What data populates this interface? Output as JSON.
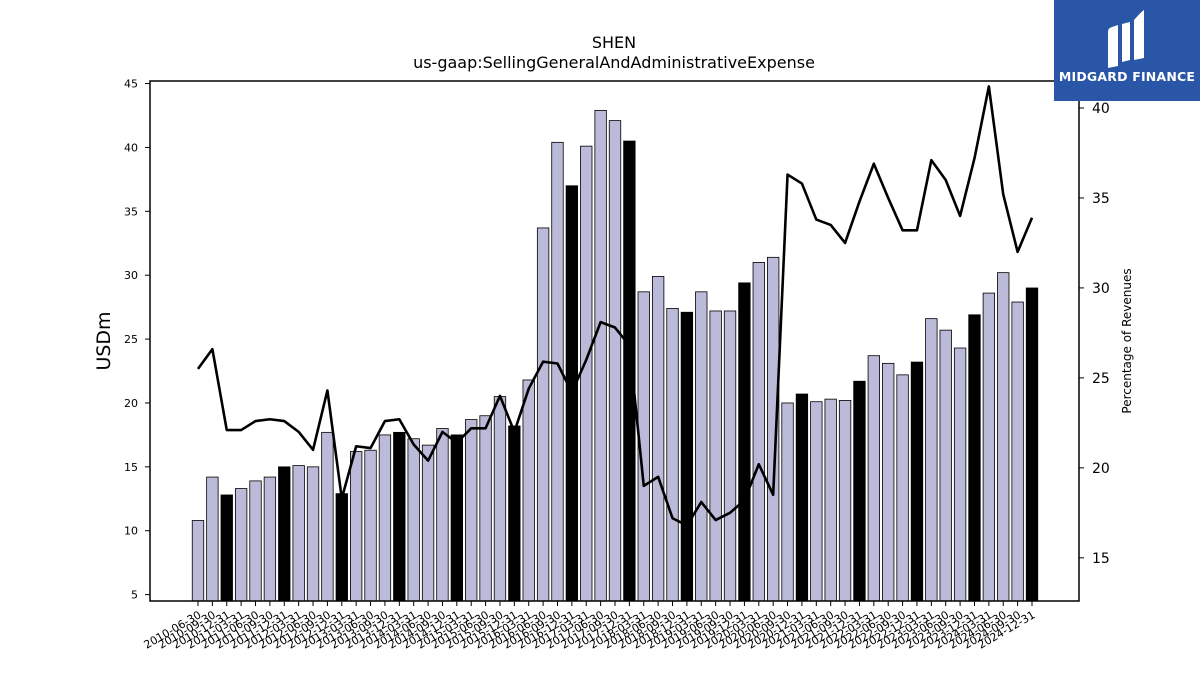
{
  "chart_data": {
    "type": "bar",
    "title": "SHEN",
    "subtitle": "us-gaap:SellingGeneralAndAdministrativeExpense",
    "ylabel": "USDm",
    "y2label": "Percentage of Revenues",
    "ylim": [
      4.5,
      45.2
    ],
    "y2lim": [
      12.6,
      41.5
    ],
    "yticks": [
      5,
      10,
      15,
      20,
      25,
      30,
      35,
      40,
      45
    ],
    "y2ticks": [
      15,
      20,
      25,
      30,
      35,
      40
    ],
    "categories": [
      "2010-06-30",
      "2010-09-30",
      "2010-12-31",
      "2011-03-31",
      "2011-06-30",
      "2011-09-30",
      "2011-12-31",
      "2012-03-31",
      "2012-06-30",
      "2012-09-30",
      "2012-12-31",
      "2013-03-31",
      "2013-06-30",
      "2013-09-30",
      "2013-12-31",
      "2014-03-31",
      "2014-06-30",
      "2014-09-30",
      "2014-12-31",
      "2015-03-31",
      "2015-06-30",
      "2015-09-30",
      "2015-12-31",
      "2016-03-31",
      "2016-06-30",
      "2016-09-30",
      "2016-12-31",
      "2017-03-31",
      "2017-06-30",
      "2017-09-30",
      "2017-12-31",
      "2018-03-31",
      "2018-06-30",
      "2018-09-30",
      "2018-12-31",
      "2019-03-31",
      "2019-06-30",
      "2019-09-30",
      "2019-12-31",
      "2020-03-31",
      "2020-06-30",
      "2020-09-30",
      "2020-12-31",
      "2021-03-31",
      "2021-06-30",
      "2021-09-30",
      "2021-12-31",
      "2022-03-31",
      "2022-06-30",
      "2022-09-30",
      "2022-12-31",
      "2023-03-31",
      "2023-06-30",
      "2023-09-30",
      "2023-12-31",
      "2024-03-31",
      "2024-06-30",
      "2024-09-30",
      "2024-12-31"
    ],
    "series": [
      {
        "values": [
          10.8,
          14.2,
          12.8,
          13.3,
          13.9,
          14.2,
          15.0,
          15.1,
          15.0,
          17.7,
          12.9,
          16.2,
          16.3,
          17.5,
          17.7,
          17.2,
          16.7,
          18.0,
          17.5,
          18.7,
          19.0,
          20.5,
          18.2,
          21.8,
          33.7,
          40.4,
          37.0,
          40.1,
          42.9,
          42.1,
          40.5,
          28.7,
          29.9,
          27.4,
          27.1,
          28.7,
          27.2,
          27.2,
          29.4,
          31.0,
          31.4,
          20.0,
          20.7,
          20.1,
          20.3,
          20.2,
          21.7,
          23.7,
          23.1,
          22.2,
          23.2,
          26.6,
          25.7,
          24.3,
          26.9,
          28.6,
          30.2,
          27.9,
          29.0
        ],
        "annual": [
          false,
          false,
          true,
          false,
          false,
          false,
          true,
          false,
          false,
          false,
          true,
          false,
          false,
          false,
          true,
          false,
          false,
          false,
          true,
          false,
          false,
          false,
          true,
          false,
          false,
          false,
          true,
          false,
          false,
          false,
          true,
          false,
          false,
          false,
          true,
          false,
          false,
          false,
          true,
          false,
          false,
          false,
          true,
          false,
          false,
          false,
          true,
          false,
          false,
          false,
          true,
          false,
          false,
          false,
          true,
          false,
          false,
          false,
          true
        ]
      },
      {
        "values": [
          25.5,
          26.6,
          22.1,
          22.1,
          22.6,
          22.7,
          22.6,
          22.0,
          21.0,
          24.3,
          18.3,
          21.2,
          21.1,
          22.6,
          22.7,
          21.3,
          20.4,
          22.0,
          21.4,
          22.2,
          22.2,
          24.0,
          22.0,
          24.4,
          25.9,
          25.8,
          24.2,
          26.0,
          28.1,
          27.8,
          26.8,
          19.0,
          19.5,
          17.2,
          16.8,
          18.1,
          17.1,
          17.5,
          18.2,
          20.2,
          18.5,
          36.3,
          35.8,
          33.8,
          33.5,
          32.5,
          34.8,
          36.9,
          35.0,
          33.2,
          33.2,
          37.1,
          36.0,
          34.0,
          37.2,
          41.2,
          35.2,
          32.0,
          33.9
        ]
      }
    ],
    "colors": {
      "bar": "#bcbad9",
      "bar_annual": "#000000",
      "line": "#000000"
    }
  },
  "logo": {
    "text": "MIDGARD FINANCE",
    "bg": "#2a56a8"
  }
}
